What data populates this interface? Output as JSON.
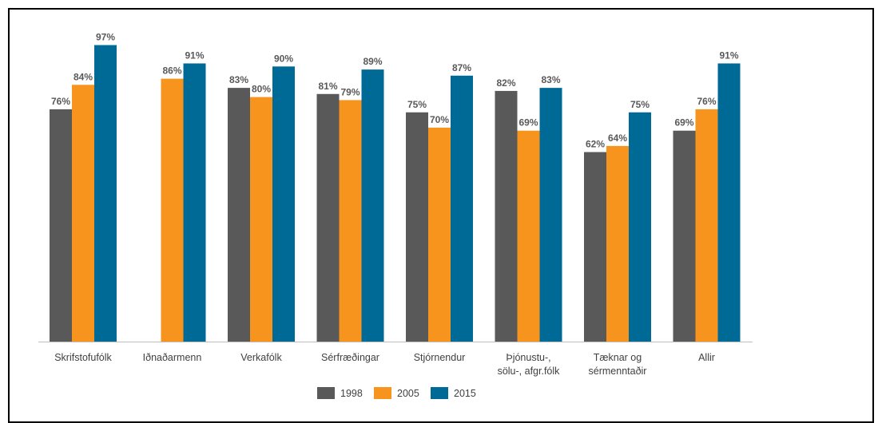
{
  "chart_data": {
    "type": "bar",
    "title": "",
    "xlabel": "",
    "ylabel": "",
    "ylim": [
      0,
      100
    ],
    "grid": false,
    "legend_position": "bottom",
    "categories": [
      [
        "Skrifstofufólk"
      ],
      [
        "Iðnaðarmenn"
      ],
      [
        "Verkafólk"
      ],
      [
        "Sérfræðingar"
      ],
      [
        "Stjórnendur"
      ],
      [
        "Þjónustu-,",
        "sölu-, afgr.fólk"
      ],
      [
        "Tæknar og",
        "sérmenntaðir"
      ],
      [
        "Allir"
      ]
    ],
    "series": [
      {
        "name": "1998",
        "color": "#595959",
        "values": [
          76,
          null,
          83,
          81,
          75,
          82,
          62,
          69
        ]
      },
      {
        "name": "2005",
        "color": "#F7941D",
        "values": [
          84,
          86,
          80,
          79,
          70,
          69,
          64,
          76
        ]
      },
      {
        "name": "2015",
        "color": "#006A96",
        "values": [
          97,
          91,
          90,
          89,
          87,
          83,
          75,
          91
        ]
      }
    ],
    "value_suffix": "%"
  }
}
